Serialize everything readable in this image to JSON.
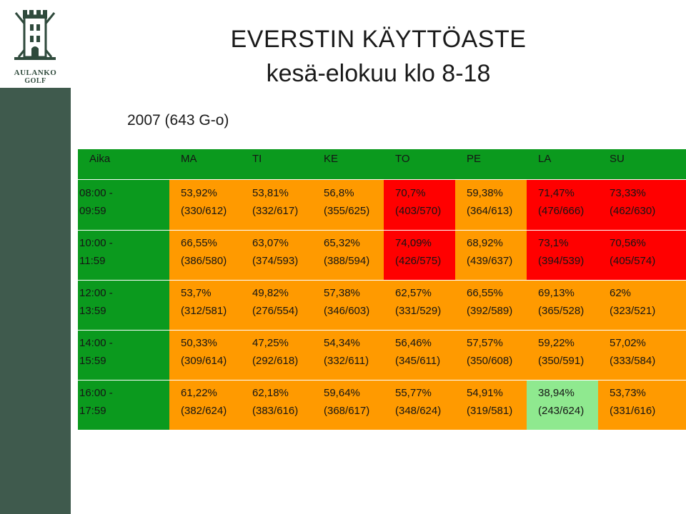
{
  "logo": {
    "line1": "AULANKO",
    "line2": "GOLF"
  },
  "title": {
    "line1": "EVERSTIN KÄYTTÖASTE",
    "line2": "kesä-elokuu klo 8-18"
  },
  "subtitle": "2007 (643 G-o)",
  "colors": {
    "green": "#0b9a1e",
    "orange": "#ff9a00",
    "red": "#ff0000",
    "light_green": "#8fe98f",
    "sidebar": "#3f5a4d"
  },
  "table": {
    "headers": [
      "Aika",
      "MA",
      "TI",
      "KE",
      "TO",
      "PE",
      "LA",
      "SU"
    ],
    "rows": [
      {
        "time": [
          "08:00 -",
          "09:59"
        ],
        "cells": [
          {
            "pct": "53,92%",
            "ratio": "(330/612)",
            "color": "orange"
          },
          {
            "pct": "53,81%",
            "ratio": "(332/617)",
            "color": "orange"
          },
          {
            "pct": "56,8%",
            "ratio": "(355/625)",
            "color": "orange"
          },
          {
            "pct": "70,7%",
            "ratio": "(403/570)",
            "color": "red"
          },
          {
            "pct": "59,38%",
            "ratio": "(364/613)",
            "color": "orange"
          },
          {
            "pct": "71,47%",
            "ratio": "(476/666)",
            "color": "red"
          },
          {
            "pct": "73,33%",
            "ratio": "(462/630)",
            "color": "red"
          }
        ]
      },
      {
        "time": [
          "10:00 -",
          "11:59"
        ],
        "cells": [
          {
            "pct": "66,55%",
            "ratio": "(386/580)",
            "color": "orange"
          },
          {
            "pct": "63,07%",
            "ratio": "(374/593)",
            "color": "orange"
          },
          {
            "pct": "65,32%",
            "ratio": "(388/594)",
            "color": "orange"
          },
          {
            "pct": "74,09%",
            "ratio": "(426/575)",
            "color": "red"
          },
          {
            "pct": "68,92%",
            "ratio": "(439/637)",
            "color": "orange"
          },
          {
            "pct": "73,1%",
            "ratio": "(394/539)",
            "color": "red"
          },
          {
            "pct": "70,56%",
            "ratio": "(405/574)",
            "color": "red"
          }
        ]
      },
      {
        "time": [
          "12:00 -",
          "13:59"
        ],
        "cells": [
          {
            "pct": "53,7%",
            "ratio": "(312/581)",
            "color": "orange"
          },
          {
            "pct": "49,82%",
            "ratio": "(276/554)",
            "color": "orange"
          },
          {
            "pct": "57,38%",
            "ratio": "(346/603)",
            "color": "orange"
          },
          {
            "pct": "62,57%",
            "ratio": "(331/529)",
            "color": "orange"
          },
          {
            "pct": "66,55%",
            "ratio": "(392/589)",
            "color": "orange"
          },
          {
            "pct": "69,13%",
            "ratio": "(365/528)",
            "color": "orange"
          },
          {
            "pct": "62%",
            "ratio": "(323/521)",
            "color": "orange"
          }
        ]
      },
      {
        "time": [
          "14:00 -",
          "15:59"
        ],
        "cells": [
          {
            "pct": "50,33%",
            "ratio": "(309/614)",
            "color": "orange"
          },
          {
            "pct": "47,25%",
            "ratio": "(292/618)",
            "color": "orange"
          },
          {
            "pct": "54,34%",
            "ratio": "(332/611)",
            "color": "orange"
          },
          {
            "pct": "56,46%",
            "ratio": "(345/611)",
            "color": "orange"
          },
          {
            "pct": "57,57%",
            "ratio": "(350/608)",
            "color": "orange"
          },
          {
            "pct": "59,22%",
            "ratio": "(350/591)",
            "color": "orange"
          },
          {
            "pct": "57,02%",
            "ratio": "(333/584)",
            "color": "orange"
          }
        ]
      },
      {
        "time": [
          "16:00 -",
          "17:59"
        ],
        "cells": [
          {
            "pct": "61,22%",
            "ratio": "(382/624)",
            "color": "orange"
          },
          {
            "pct": "62,18%",
            "ratio": "(383/616)",
            "color": "orange"
          },
          {
            "pct": "59,64%",
            "ratio": "(368/617)",
            "color": "orange"
          },
          {
            "pct": "55,77%",
            "ratio": "(348/624)",
            "color": "orange"
          },
          {
            "pct": "54,91%",
            "ratio": "(319/581)",
            "color": "orange"
          },
          {
            "pct": "38,94%",
            "ratio": "(243/624)",
            "color": "light_green"
          },
          {
            "pct": "53,73%",
            "ratio": "(331/616)",
            "color": "orange"
          }
        ]
      }
    ]
  }
}
